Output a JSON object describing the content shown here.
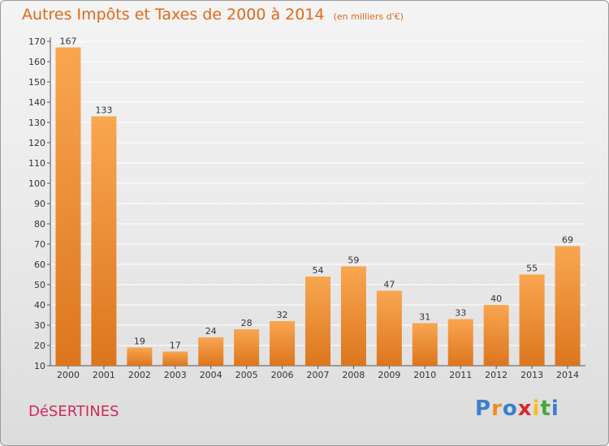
{
  "title": "Autres Impôts et Taxes de 2000 à 2014",
  "unit_note": "(en milliers d'€)",
  "commune": "DéSERTINES",
  "logo": {
    "text": "Proxiti",
    "letters": [
      {
        "ch": "P",
        "color": "#3a7fd0"
      },
      {
        "ch": "r",
        "color": "#f08c1e"
      },
      {
        "ch": "o",
        "color": "#3a7fd0"
      },
      {
        "ch": "x",
        "color": "#d8262f"
      },
      {
        "ch": "i",
        "color": "#f2c21b"
      },
      {
        "ch": "t",
        "color": "#4aa63a"
      },
      {
        "ch": "i",
        "color": "#3a7fd0"
      }
    ]
  },
  "colors": {
    "bar_light": "#f9a651",
    "bar_dark": "#dc761d",
    "title": "#e06818",
    "commune": "#d02a5a",
    "grid": "#ffffff",
    "axis": "#555555"
  },
  "chart_data": {
    "type": "bar",
    "title": "Autres Impôts et Taxes de 2000 à 2014",
    "xlabel": "",
    "ylabel": "",
    "categories": [
      "2000",
      "2001",
      "2002",
      "2003",
      "2004",
      "2005",
      "2006",
      "2007",
      "2008",
      "2009",
      "2010",
      "2011",
      "2012",
      "2013",
      "2014"
    ],
    "values": [
      167,
      133,
      19,
      17,
      24,
      28,
      32,
      54,
      59,
      47,
      31,
      33,
      40,
      55,
      69
    ],
    "ylim": [
      10,
      170
    ],
    "yticks": [
      10,
      20,
      30,
      40,
      50,
      60,
      70,
      80,
      90,
      100,
      110,
      120,
      130,
      140,
      150,
      160,
      170
    ],
    "grid": true,
    "legend": "none"
  }
}
